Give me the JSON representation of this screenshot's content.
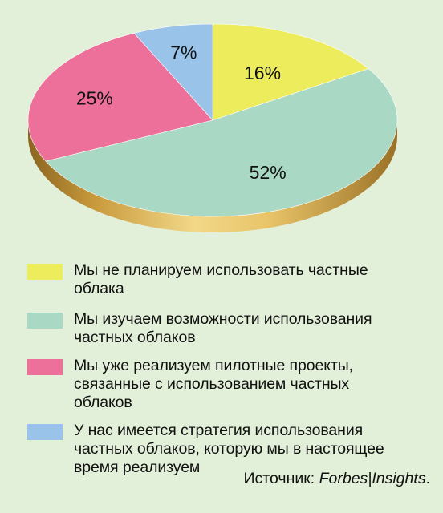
{
  "chart_data": {
    "type": "pie",
    "slices": [
      {
        "label": "Мы не планируем использовать частные\nоблака",
        "value": 16,
        "value_label": "16%",
        "color": "#ecec5c"
      },
      {
        "label": "Мы изучаем возможности использования\nчастных облаков",
        "value": 52,
        "value_label": "52%",
        "color": "#a9d9c4"
      },
      {
        "label": "Мы уже реализуем пилотные проекты,\nсвязанные с использованием частных\nоблаков",
        "value": 25,
        "value_label": "25%",
        "color": "#ec7099"
      },
      {
        "label": "У нас имеется стратегия использования\nчастных облаков, которую мы в настоящее\nвремя реализуем",
        "value": 7,
        "value_label": "7%",
        "color": "#99c3e8"
      }
    ],
    "legend_position": "bottom",
    "rim_color": "#d7b25a"
  },
  "source": {
    "prefix": "Источник: ",
    "brand": "Forbes|Insights",
    "suffix": "."
  }
}
